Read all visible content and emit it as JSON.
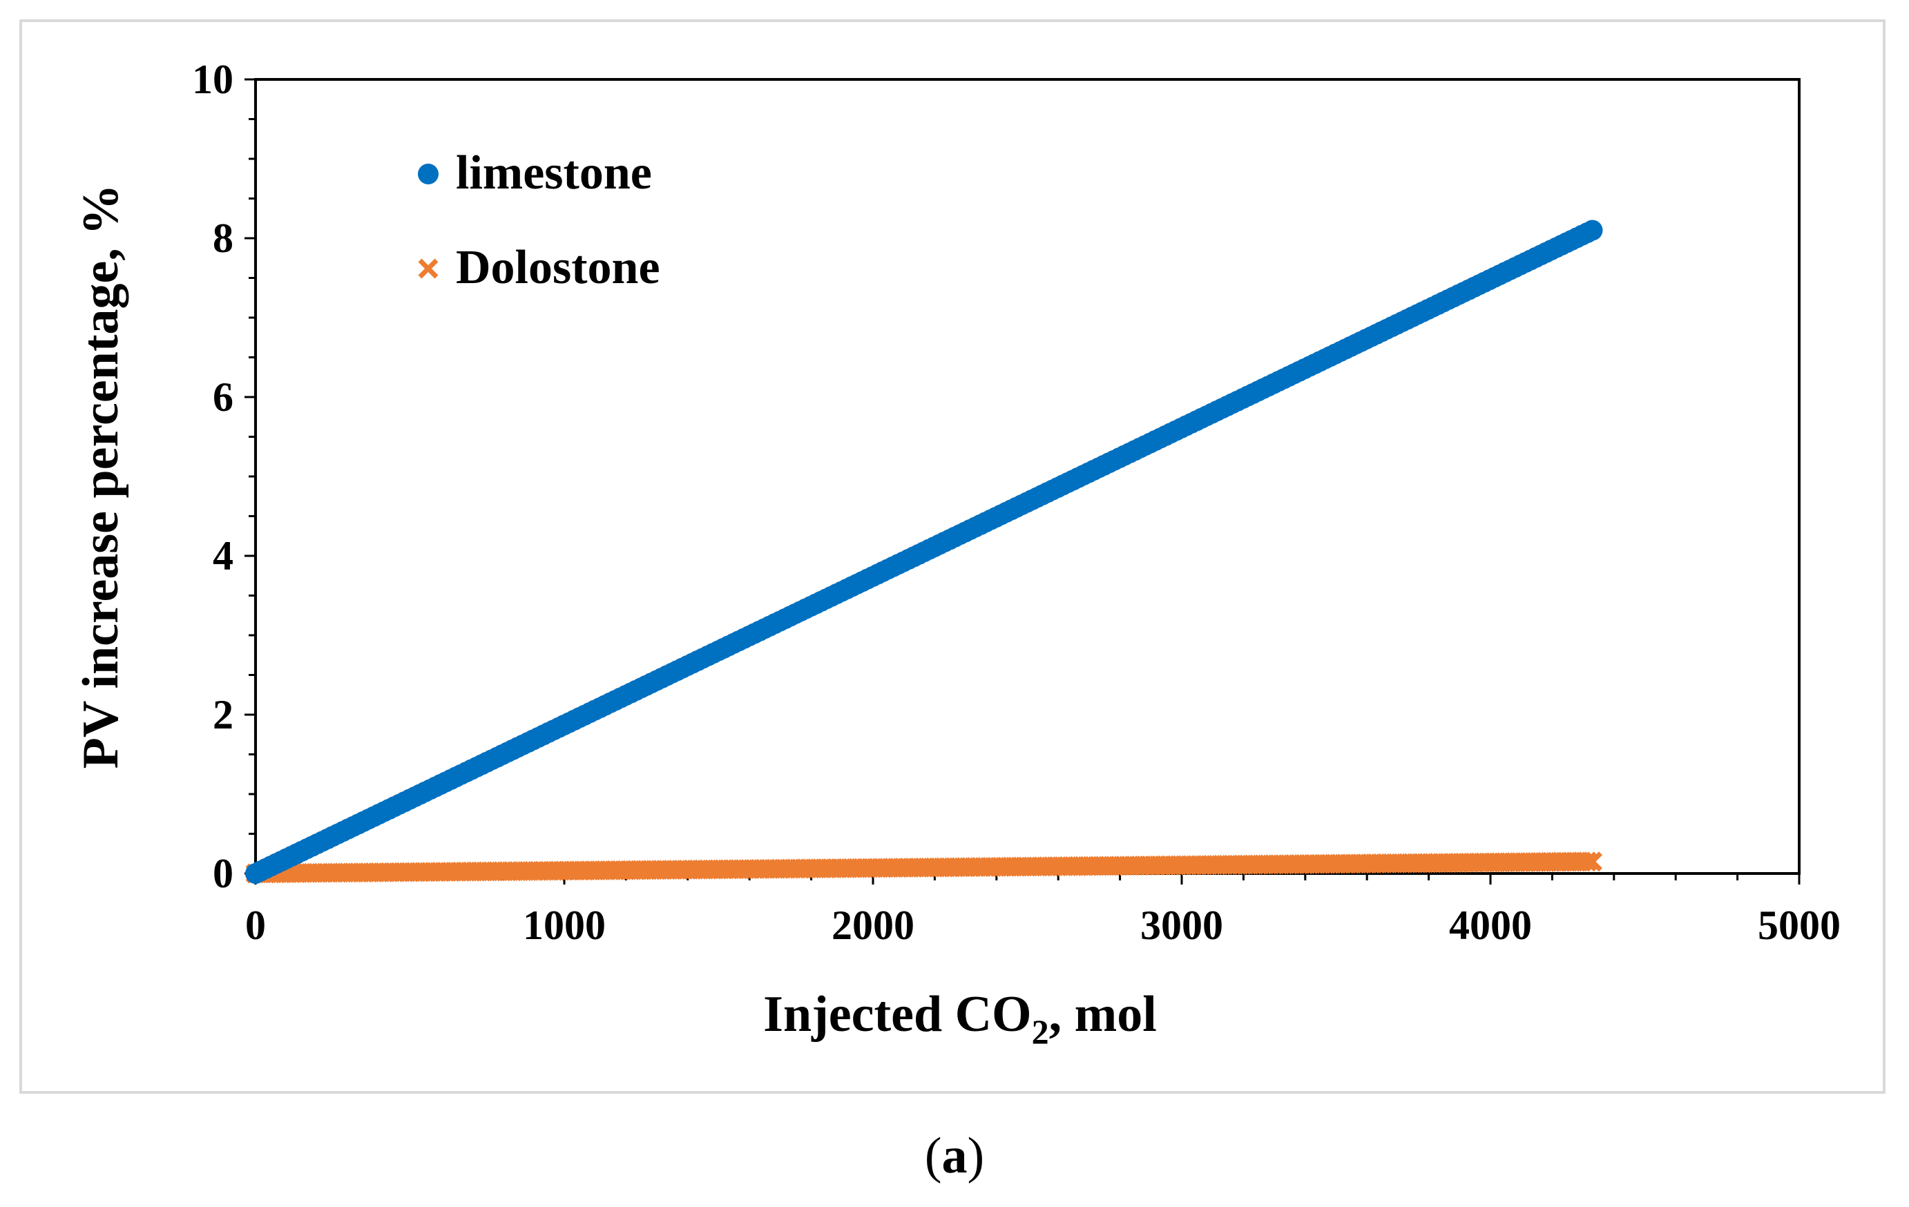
{
  "chart_data": {
    "type": "scatter",
    "xlabel_main": "Injected CO",
    "xlabel_sub": "2",
    "xlabel_tail": ", mol",
    "ylabel": "PV increase percentage, %",
    "xlim": [
      0,
      5000
    ],
    "ylim": [
      0,
      10
    ],
    "x_ticks": [
      0,
      1000,
      2000,
      3000,
      4000,
      5000
    ],
    "y_ticks": [
      0,
      2,
      4,
      6,
      8,
      10
    ],
    "x_tick_labels": [
      "0",
      "1000",
      "2000",
      "3000",
      "4000",
      "5000"
    ],
    "y_tick_labels": [
      "0",
      "2",
      "4",
      "6",
      "8",
      "10"
    ],
    "legend_position": "top-left",
    "series": [
      {
        "name": "limestone",
        "marker": "circle",
        "color": "#0070C0",
        "x_start": 0,
        "x_end": 4330,
        "y_start": 0,
        "y_end": 8.1
      },
      {
        "name": "Dolostone",
        "marker": "x",
        "color": "#ED7D31",
        "x_start": 0,
        "x_end": 4330,
        "y_start": 0,
        "y_end": 0.15
      }
    ]
  },
  "panel_label": {
    "open": "(",
    "letter": "a",
    "close": ")"
  }
}
